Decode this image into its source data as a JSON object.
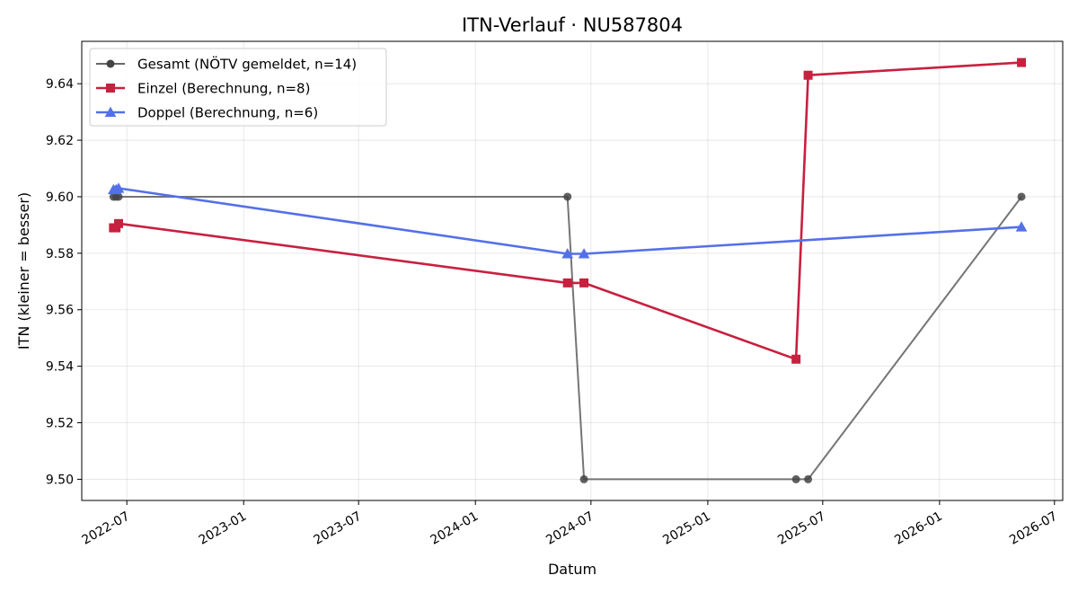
{
  "chart_data": {
    "type": "line",
    "title": "ITN-Verlauf · NU587804",
    "xlabel": "Datum",
    "ylabel": "ITN  (kleiner = besser)",
    "x_type": "date",
    "xlim": [
      "2022-04-21",
      "2026-07-14"
    ],
    "ylim": [
      9.4925,
      9.655
    ],
    "x_ticks": [
      "2022-07-01",
      "2023-01-01",
      "2023-07-01",
      "2024-01-01",
      "2024-07-01",
      "2025-01-01",
      "2025-07-01",
      "2026-01-01",
      "2026-07-01"
    ],
    "x_tick_labels": [
      "2022-07",
      "2023-01",
      "2023-07",
      "2024-01",
      "2024-07",
      "2025-01",
      "2025-07",
      "2026-01",
      "2026-07"
    ],
    "y_ticks": [
      9.5,
      9.52,
      9.54,
      9.56,
      9.58,
      9.6,
      9.62,
      9.64
    ],
    "y_tick_labels": [
      "9.50",
      "9.52",
      "9.54",
      "9.56",
      "9.58",
      "9.60",
      "9.62",
      "9.64"
    ],
    "grid": true,
    "legend": "top-left",
    "series": [
      {
        "name": "Gesamt (NÖTV gemeldet, n=14)",
        "color": "#666666",
        "marker": "circle",
        "points": [
          {
            "x": "2022-06-10",
            "y": 9.6
          },
          {
            "x": "2022-06-14",
            "y": 9.6
          },
          {
            "x": "2022-06-18",
            "y": 9.6
          },
          {
            "x": "2024-05-25",
            "y": 9.6
          },
          {
            "x": "2024-06-20",
            "y": 9.5
          },
          {
            "x": "2025-05-20",
            "y": 9.5
          },
          {
            "x": "2025-06-08",
            "y": 9.5
          },
          {
            "x": "2026-05-10",
            "y": 9.6
          }
        ]
      },
      {
        "name": "Einzel (Berechnung, n=8)",
        "color": "#c8203f",
        "marker": "square",
        "points": [
          {
            "x": "2022-06-10",
            "y": 9.589
          },
          {
            "x": "2022-06-14",
            "y": 9.589
          },
          {
            "x": "2022-06-18",
            "y": 9.5905
          },
          {
            "x": "2024-05-25",
            "y": 9.5695
          },
          {
            "x": "2024-06-20",
            "y": 9.5695
          },
          {
            "x": "2025-05-20",
            "y": 9.5425
          },
          {
            "x": "2025-06-08",
            "y": 9.643
          },
          {
            "x": "2026-05-10",
            "y": 9.6475
          }
        ]
      },
      {
        "name": "Doppel (Berechnung, n=6)",
        "color": "#5470e8",
        "marker": "triangle",
        "points": [
          {
            "x": "2022-06-10",
            "y": 9.6025
          },
          {
            "x": "2022-06-14",
            "y": 9.6025
          },
          {
            "x": "2022-06-18",
            "y": 9.603
          },
          {
            "x": "2024-05-25",
            "y": 9.5798
          },
          {
            "x": "2024-06-20",
            "y": 9.5798
          },
          {
            "x": "2026-05-10",
            "y": 9.5893
          }
        ]
      }
    ]
  }
}
